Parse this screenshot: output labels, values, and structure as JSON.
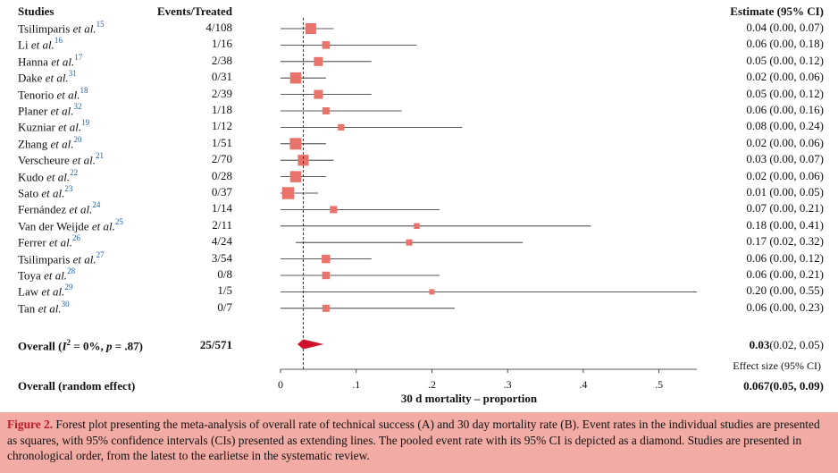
{
  "headers": {
    "studies": "Studies",
    "events": "Events/Treated",
    "estimate": "Estimate (95% CI)"
  },
  "chart_data": {
    "type": "forest",
    "xlabel": "30 d mortality – proportion",
    "xlim": [
      0,
      0.55
    ],
    "xticks": [
      0,
      0.1,
      0.2,
      0.3,
      0.4,
      0.5
    ],
    "xtick_labels": [
      "0",
      ".1",
      ".2",
      ".3",
      ".4",
      ".5"
    ],
    "reference_line": 0.03,
    "studies": [
      {
        "name": "Tsilimparis",
        "etal": "et al.",
        "ref": "15",
        "events": "4/108",
        "estimate": 0.04,
        "lower": 0.0,
        "upper": 0.07,
        "estimate_text": "0.04 (0.00, 0.07)",
        "weight": 0.9
      },
      {
        "name": "Li",
        "etal": "et al.",
        "ref": "16",
        "events": "1/16",
        "estimate": 0.06,
        "lower": 0.0,
        "upper": 0.18,
        "estimate_text": "0.06 (0.00, 0.18)",
        "weight": 0.55
      },
      {
        "name": "Hanna",
        "etal": "et al.",
        "ref": "17",
        "events": "2/38",
        "estimate": 0.05,
        "lower": 0.0,
        "upper": 0.12,
        "estimate_text": "0.05 (0.00, 0.12)",
        "weight": 0.7
      },
      {
        "name": "Dake",
        "etal": "et al.",
        "ref": "31",
        "events": "0/31",
        "estimate": 0.02,
        "lower": 0.0,
        "upper": 0.06,
        "estimate_text": "0.02 (0.00, 0.06)",
        "weight": 0.95
      },
      {
        "name": "Tenorio",
        "etal": "et al.",
        "ref": "18",
        "events": "2/39",
        "estimate": 0.05,
        "lower": 0.0,
        "upper": 0.12,
        "estimate_text": "0.05 (0.00, 0.12)",
        "weight": 0.7
      },
      {
        "name": "Planer",
        "etal": "et al.",
        "ref": "32",
        "events": "1/18",
        "estimate": 0.06,
        "lower": 0.0,
        "upper": 0.16,
        "estimate_text": "0.06 (0.00, 0.16)",
        "weight": 0.5
      },
      {
        "name": "Kuzniar",
        "etal": "et al.",
        "ref": "19",
        "events": "1/12",
        "estimate": 0.08,
        "lower": 0.0,
        "upper": 0.24,
        "estimate_text": "0.08 (0.00, 0.24)",
        "weight": 0.42
      },
      {
        "name": "Zhang",
        "etal": "et al.",
        "ref": "20",
        "events": "1/51",
        "estimate": 0.02,
        "lower": 0.0,
        "upper": 0.06,
        "estimate_text": "0.02 (0.00, 0.06)",
        "weight": 1.0
      },
      {
        "name": "Verscheure",
        "etal": "et al.",
        "ref": "21",
        "events": "2/70",
        "estimate": 0.03,
        "lower": 0.0,
        "upper": 0.07,
        "estimate_text": "0.03 (0.00, 0.07)",
        "weight": 0.92
      },
      {
        "name": "Kudo",
        "etal": "et al.",
        "ref": "22",
        "events": "0/28",
        "estimate": 0.02,
        "lower": 0.0,
        "upper": 0.06,
        "estimate_text": "0.02 (0.00, 0.06)",
        "weight": 0.95
      },
      {
        "name": "Sato",
        "etal": "et al.",
        "ref": "23",
        "events": "0/37",
        "estimate": 0.01,
        "lower": 0.0,
        "upper": 0.05,
        "estimate_text": "0.01 (0.00, 0.05)",
        "weight": 1.05
      },
      {
        "name": "Fernández",
        "etal": "et al.",
        "ref": "24",
        "events": "1/14",
        "estimate": 0.07,
        "lower": 0.0,
        "upper": 0.21,
        "estimate_text": "0.07 (0.00, 0.21)",
        "weight": 0.5
      },
      {
        "name": "Van der Weijde",
        "etal": "et al.",
        "ref": "25",
        "events": "2/11",
        "estimate": 0.18,
        "lower": 0.0,
        "upper": 0.41,
        "estimate_text": "0.18 (0.00, 0.41)",
        "weight": 0.35
      },
      {
        "name": "Ferrer",
        "etal": "et al.",
        "ref": "26",
        "events": "4/24",
        "estimate": 0.17,
        "lower": 0.02,
        "upper": 0.32,
        "estimate_text": "0.17 (0.02, 0.32)",
        "weight": 0.4
      },
      {
        "name": "Tsilimparis",
        "etal": "et al.",
        "ref": "27",
        "events": "3/54",
        "estimate": 0.06,
        "lower": 0.0,
        "upper": 0.12,
        "estimate_text": "0.06 (0.00, 0.12)",
        "weight": 0.65
      },
      {
        "name": "Toya",
        "etal": "et al.",
        "ref": "28",
        "events": "0/8",
        "estimate": 0.06,
        "lower": 0.0,
        "upper": 0.21,
        "estimate_text": "0.06 (0.00, 0.21)",
        "weight": 0.55
      },
      {
        "name": "Law",
        "etal": "et al.",
        "ref": "29",
        "events": "1/5",
        "estimate": 0.2,
        "lower": 0.0,
        "upper": 0.55,
        "estimate_text": "0.20 (0.00, 0.55)",
        "weight": 0.3
      },
      {
        "name": "Tan",
        "etal": "et al.",
        "ref": "30",
        "events": "0/7",
        "estimate": 0.06,
        "lower": 0.0,
        "upper": 0.23,
        "estimate_text": "0.06 (0.00, 0.23)",
        "weight": 0.5
      }
    ],
    "overall": {
      "label": "Overall (",
      "i2_symbol": "I",
      "i2_text": "2",
      "rest_text": " = 0%, ",
      "p_symbol": "p",
      "p_text": " = .87)",
      "events": "25/571",
      "estimate": 0.03,
      "lower": 0.02,
      "upper": 0.05,
      "estimate_value_text": "0.03",
      "ci_text": "(0.02, 0.05)"
    },
    "effect_size_label": "Effect size (95% CI)",
    "random_effect": {
      "label": "Overall (random effect)",
      "estimate_value_text": "0.067",
      "ci_text": "(0.05, 0.09)"
    },
    "colors": {
      "square": "#e8736b",
      "diamond": "#d0112b",
      "line": "#222222"
    }
  },
  "caption": {
    "figure_label": "Figure 2.",
    "text": " Forest plot presenting the meta-analysis of overall rate of technical success (A) and 30 day mortality rate (B). Event rates in the individual studies are presented as squares, with 95% confidence intervals (CIs) presented as extending lines. The pooled event rate with its 95% CI is depicted as a diamond. Studies are presented in chronological order, from the latest to the earlietse in the systematic review."
  }
}
